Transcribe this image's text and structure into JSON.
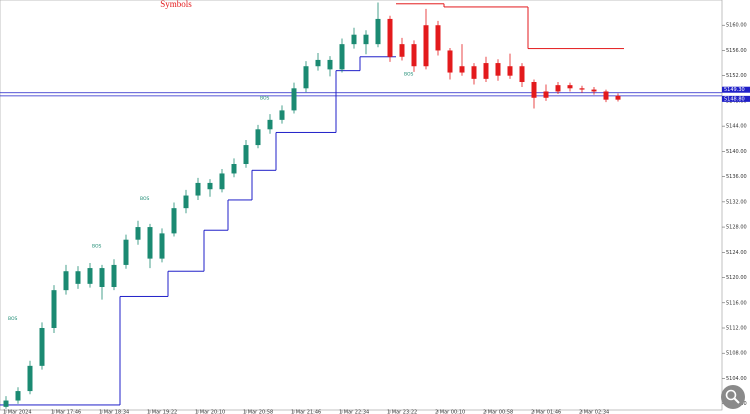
{
  "chart_data": {
    "type": "candlestick",
    "title": "Symbols",
    "categories": [
      null,
      null,
      null,
      null,
      null,
      null,
      null,
      null,
      null,
      null,
      null,
      null,
      null,
      null,
      null,
      null,
      null,
      null,
      null,
      null,
      null,
      null,
      null,
      null,
      null,
      null,
      null,
      null,
      null,
      null,
      null,
      null,
      null,
      null,
      null,
      null,
      null,
      null,
      null,
      null,
      null,
      null,
      null,
      null,
      null,
      null,
      null,
      null,
      null,
      null,
      null,
      null
    ],
    "series": [
      {
        "open": [
          5099.5,
          5100.5,
          5102,
          5106,
          5112,
          5118,
          5121,
          5119,
          5121.5,
          5118.5,
          5122,
          5126,
          5128,
          5123,
          5127,
          5131,
          5133,
          5135,
          5134,
          5136.5,
          5138,
          5141,
          5143.5,
          5145,
          5146.5,
          5150,
          5153.5,
          5154.5,
          5153,
          5157,
          5158.5,
          5157,
          5161,
          5155,
          5157,
          5153.5,
          5160,
          5156,
          5152.5,
          5153.5,
          5151.5,
          5154,
          5152,
          5153.5,
          5151,
          5148.5,
          5149.5,
          5150.5,
          5150,
          5149.8,
          5149.5,
          5148.2
        ],
        "high": [
          5101.2,
          5102.6,
          5106.8,
          5112.9,
          5118.8,
          5122,
          5121.8,
          5122.3,
          5122,
          5122.9,
          5126.8,
          5129,
          5128.5,
          5127.8,
          5131.9,
          5133.9,
          5135.8,
          5135.6,
          5137.2,
          5138.9,
          5141.8,
          5144.2,
          5145.9,
          5147.3,
          5150.9,
          5154.3,
          5155.6,
          5155.1,
          5157.9,
          5159.6,
          5159.2,
          5163.6,
          5161.5,
          5158,
          5157.6,
          5162.6,
          5160.7,
          5156.4,
          5157,
          5154,
          5155,
          5154.6,
          5155.5,
          5154,
          5151.4,
          5150.6,
          5151,
          5150.9,
          5150.4,
          5150.2,
          5149.8,
          5149.2
        ],
        "low": [
          5099.2,
          5100,
          5101.5,
          5105.4,
          5111.2,
          5117.3,
          5118.2,
          5118.4,
          5116.5,
          5118,
          5121.4,
          5125.2,
          5121.5,
          5122.4,
          5126.5,
          5130.2,
          5132.3,
          5132.8,
          5133.5,
          5135.9,
          5137.4,
          5140.5,
          5142.8,
          5144.4,
          5146,
          5149.4,
          5152.8,
          5151.9,
          5152.5,
          5156.3,
          5155.4,
          5156.5,
          5154.2,
          5154.4,
          5152.6,
          5153,
          5155.2,
          5151.4,
          5152,
          5150.6,
          5151,
          5151.2,
          5151.5,
          5150.2,
          5146.8,
          5148,
          5149.1,
          5149.5,
          5149.3,
          5149,
          5147.8,
          5147.9
        ],
        "close": [
          5100.5,
          5102,
          5106,
          5112,
          5118,
          5121,
          5119,
          5121.5,
          5118.5,
          5122,
          5126,
          5128,
          5123,
          5127,
          5131,
          5133,
          5135,
          5134,
          5136.5,
          5138,
          5141,
          5143.5,
          5145,
          5146.5,
          5150,
          5153.5,
          5154.5,
          5153,
          5157,
          5158.5,
          5157,
          5161,
          5155,
          5157,
          5153.5,
          5160,
          5156,
          5152.5,
          5153.5,
          5151.5,
          5154,
          5152,
          5153.5,
          5151,
          5148.5,
          5149.5,
          5150.5,
          5150,
          5149.8,
          5149.5,
          5148.2,
          5148.8
        ],
        "colors": [
          "#1b8a72",
          "#1b8a72",
          "#1b8a72",
          "#1b8a72",
          "#1b8a72",
          "#1b8a72",
          "#1b8a72",
          "#1b8a72",
          "#1b8a72",
          "#1b8a72",
          "#1b8a72",
          "#1b8a72",
          "#1b8a72",
          "#1b8a72",
          "#1b8a72",
          "#1b8a72",
          "#1b8a72",
          "#1b8a72",
          "#1b8a72",
          "#1b8a72",
          "#1b8a72",
          "#1b8a72",
          "#1b8a72",
          "#1b8a72",
          "#1b8a72",
          "#1b8a72",
          "#1b8a72",
          "#1b8a72",
          "#1b8a72",
          "#1b8a72",
          "#1b8a72",
          "#1b8a72",
          "#e31a1c",
          "#e31a1c",
          "#e31a1c",
          "#e31a1c",
          "#e31a1c",
          "#e31a1c",
          "#e31a1c",
          "#e31a1c",
          "#e31a1c",
          "#e31a1c",
          "#e31a1c",
          "#e31a1c",
          "#e31a1c",
          "#e31a1c",
          "#e31a1c",
          "#e31a1c",
          "#e31a1c",
          "#e31a1c",
          "#e31a1c",
          "#e31a1c"
        ]
      }
    ],
    "lines": [
      {
        "color": "#1f1fc8",
        "values": [
          5099.8,
          5099.8,
          5099.8,
          5099.8,
          5099.8,
          5099.8,
          5099.8,
          5099.8,
          5099.8,
          5099.8,
          5117,
          5117,
          5117,
          5117,
          5121,
          5121,
          5121,
          5127.5,
          5127.5,
          5132.3,
          5132.3,
          5137,
          5137,
          5143,
          5143,
          5143,
          5143,
          5143,
          5152.8,
          5152.8,
          5155,
          5155,
          5155,
          null,
          null,
          null,
          null,
          null,
          null,
          null,
          null,
          null,
          null,
          null,
          null,
          null,
          null,
          null,
          null,
          null,
          null,
          null
        ]
      },
      {
        "color": "#e31a1c",
        "values": [
          null,
          null,
          null,
          null,
          null,
          null,
          null,
          null,
          null,
          null,
          null,
          null,
          null,
          null,
          null,
          null,
          null,
          null,
          null,
          null,
          null,
          null,
          null,
          null,
          null,
          null,
          null,
          null,
          null,
          null,
          null,
          null,
          null,
          5163.4,
          5163.4,
          5163.4,
          5163.4,
          5162.9,
          5162.9,
          5162.9,
          5162.9,
          5162.9,
          5162.9,
          5162.9,
          5156.3,
          5156.3,
          5156.3,
          5156.3,
          5156.3,
          5156.3,
          5156.3,
          5156.3
        ]
      }
    ],
    "levels": [
      5149.3,
      5148.8
    ],
    "level_labels": [
      "5149.30",
      "5148.80"
    ],
    "level_color": "#1f1fc8",
    "annotations": [
      {
        "text": "BOS",
        "index": 0,
        "value": 5113.5
      },
      {
        "text": "BOS",
        "index": 7,
        "value": 5125
      },
      {
        "text": "BOS",
        "index": 11,
        "value": 5132.5
      },
      {
        "text": "BOS",
        "index": 21,
        "value": 5148.5
      },
      {
        "text": "BOS",
        "index": 33,
        "value": 5152.3
      }
    ],
    "ylim": [
      5099,
      5164
    ],
    "yticks": [
      {
        "value": 5100,
        "label": "5100.00"
      },
      {
        "value": 5104,
        "label": "5104.00"
      },
      {
        "value": 5108,
        "label": "5108.00"
      },
      {
        "value": 5112,
        "label": "5112.00"
      },
      {
        "value": 5116,
        "label": "5116.00"
      },
      {
        "value": 5120,
        "label": "5120.00"
      },
      {
        "value": 5124,
        "label": "5124.00"
      },
      {
        "value": 5128,
        "label": "5128.00"
      },
      {
        "value": 5132,
        "label": "5132.00"
      },
      {
        "value": 5136,
        "label": "5136.00"
      },
      {
        "value": 5140,
        "label": "5140.00"
      },
      {
        "value": 5144,
        "label": "5144.00"
      },
      {
        "value": 5148,
        "label": "5148.00"
      },
      {
        "value": 5152,
        "label": "5152.00"
      },
      {
        "value": 5156,
        "label": "5156.00"
      },
      {
        "value": 5160,
        "label": "5160.00"
      }
    ],
    "xticks": [
      {
        "value": 0,
        "label": "1 Mar 2024"
      },
      {
        "value": 4,
        "label": "1 Mar 17:46"
      },
      {
        "value": 8,
        "label": "1 Mar 18:34"
      },
      {
        "value": 12,
        "label": "1 Mar 19:22"
      },
      {
        "value": 16,
        "label": "1 Mar 20:10"
      },
      {
        "value": 20,
        "label": "1 Mar 20:58"
      },
      {
        "value": 24,
        "label": "1 Mar 21:46"
      },
      {
        "value": 28,
        "label": "1 Mar 22:34"
      },
      {
        "value": 32,
        "label": "1 Mar 23:22"
      },
      {
        "value": 36,
        "label": "2 Mar 00:10"
      },
      {
        "value": 40,
        "label": "2 Mar 00:58"
      },
      {
        "value": 44,
        "label": "2 Mar 01:46"
      },
      {
        "value": 48,
        "label": "2 Mar 02:34"
      }
    ]
  }
}
